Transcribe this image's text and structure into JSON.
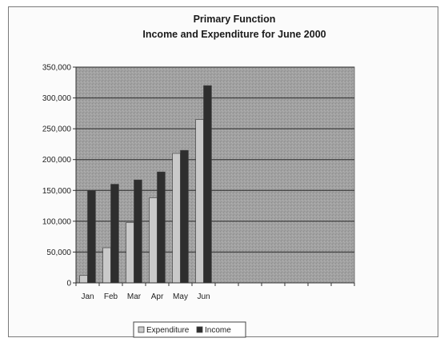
{
  "chart_data": {
    "type": "bar",
    "title": "Primary Function",
    "subtitle": "Income and Expenditure for June 2000",
    "categories": [
      "Jan",
      "Feb",
      "Mar",
      "Apr",
      "May",
      "Jun"
    ],
    "category_slots": 12,
    "series": [
      {
        "name": "Expenditure",
        "values": [
          12000,
          57000,
          98000,
          138000,
          210000,
          265000
        ],
        "color": "#c9c9c9"
      },
      {
        "name": "Income",
        "values": [
          150000,
          160000,
          167000,
          180000,
          215000,
          320000
        ],
        "color": "#2e2e2e"
      }
    ],
    "ylim": [
      0,
      350000
    ],
    "yticks": [
      0,
      50000,
      100000,
      150000,
      200000,
      250000,
      300000,
      350000
    ],
    "ytick_labels": [
      "0",
      "50,000",
      "100,000",
      "150,000",
      "200,000",
      "250,000",
      "300,000",
      "350,000"
    ],
    "grid": true,
    "plot_background": "#a3a3a3",
    "legend_position": "bottom"
  }
}
